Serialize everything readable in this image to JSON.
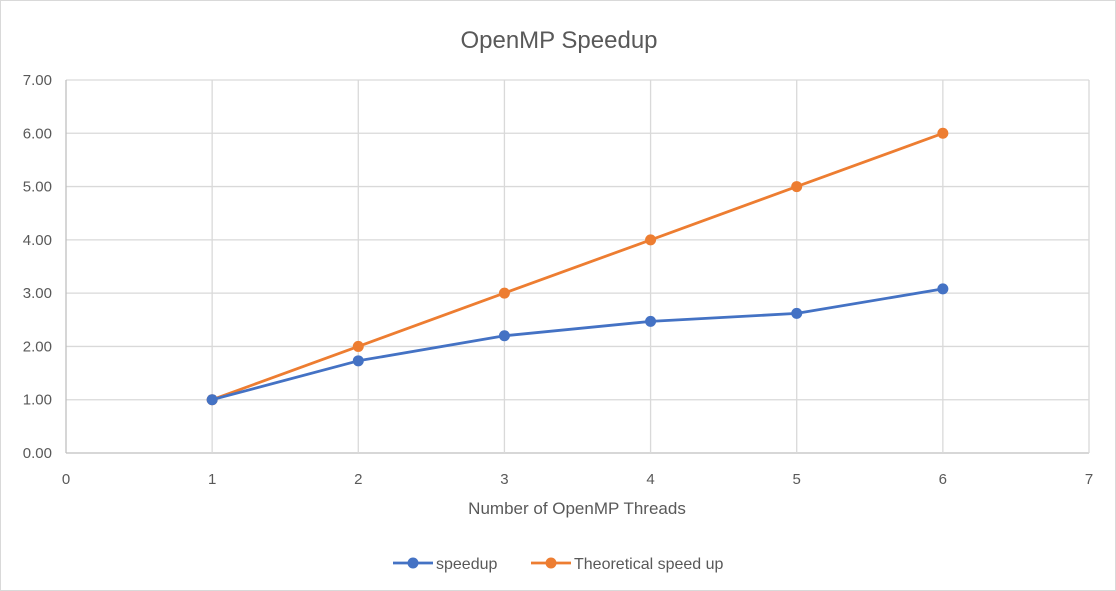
{
  "chart_data": {
    "type": "scatter",
    "title": "OpenMP Speedup",
    "xlabel": "Number of OpenMP Threads",
    "ylabel": "",
    "xlim": [
      0,
      7
    ],
    "ylim": [
      0,
      7
    ],
    "x_ticks": [
      "0",
      "1",
      "2",
      "3",
      "4",
      "5",
      "6",
      "7"
    ],
    "y_ticks": [
      "0.00",
      "1.00",
      "2.00",
      "3.00",
      "4.00",
      "5.00",
      "6.00",
      "7.00"
    ],
    "grid": true,
    "legend_position": "bottom",
    "series": [
      {
        "name": "speedup",
        "color": "#4472c4",
        "x": [
          1,
          2,
          3,
          4,
          5,
          6
        ],
        "y": [
          1.0,
          1.73,
          2.2,
          2.47,
          2.62,
          3.08
        ]
      },
      {
        "name": "Theoretical speed up",
        "color": "#ed7d31",
        "x": [
          1,
          2,
          3,
          4,
          5,
          6
        ],
        "y": [
          1.0,
          2.0,
          3.0,
          4.0,
          5.0,
          6.0
        ]
      }
    ]
  }
}
